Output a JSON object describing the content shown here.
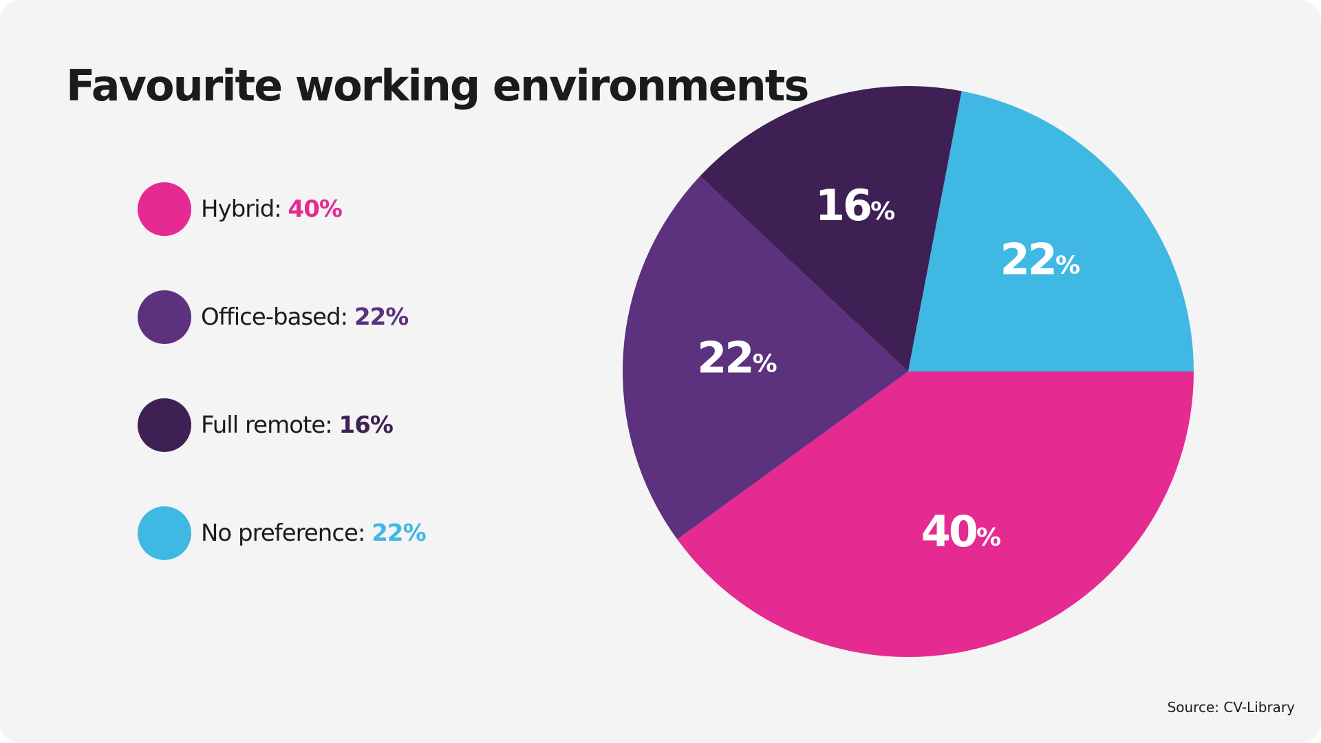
{
  "chart_data": {
    "type": "pie",
    "title": "Favourite working environments",
    "unit": "%",
    "slices": [
      {
        "label": "Hybrid",
        "value": 40,
        "color": "#e52a92",
        "text_color": "#e52a92"
      },
      {
        "label": "Office-based",
        "value": 22,
        "color": "#5c317e",
        "text_color": "#5c317e"
      },
      {
        "label": "Full remote",
        "value": 16,
        "color": "#3e2055",
        "text_color": "#3e2055"
      },
      {
        "label": "No preference",
        "value": 22,
        "color": "#40b8e4",
        "text_color": "#40b8e4"
      }
    ],
    "slice_order_clockwise_from_3_oclock": [
      "Hybrid",
      "Office-based",
      "Full remote",
      "No preference"
    ],
    "legend_position": "left",
    "source": "Source: CV-Library"
  },
  "legend": [
    {
      "label": "Hybrid:",
      "value": "40%"
    },
    {
      "label": "Office-based:",
      "value": "22%"
    },
    {
      "label": "Full remote:",
      "value": "16%"
    },
    {
      "label": "No preference:",
      "value": "22%"
    }
  ]
}
